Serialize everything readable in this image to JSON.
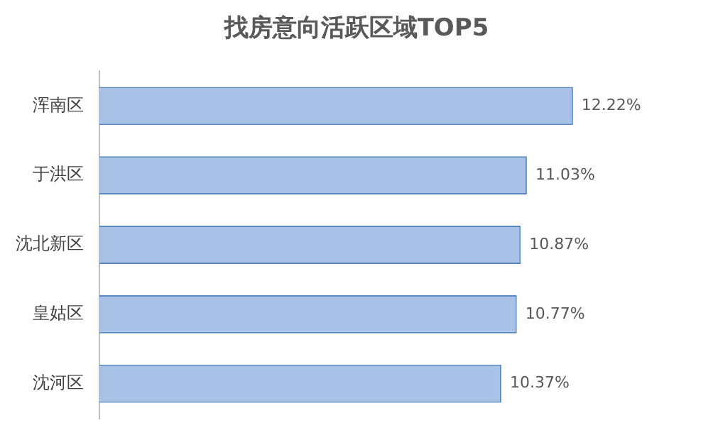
{
  "chart_data": {
    "type": "bar",
    "orientation": "horizontal",
    "title": "找房意向活跃区域TOP5",
    "categories": [
      "浑南区",
      "于洪区",
      "沈北新区",
      "皇姑区",
      "沈河区"
    ],
    "values": [
      12.22,
      11.03,
      10.87,
      10.77,
      10.37
    ],
    "value_labels": [
      "12.22%",
      "11.03%",
      "10.87%",
      "10.77%",
      "10.37%"
    ],
    "color": "#a7c2e6",
    "tick_labels": "y"
  }
}
